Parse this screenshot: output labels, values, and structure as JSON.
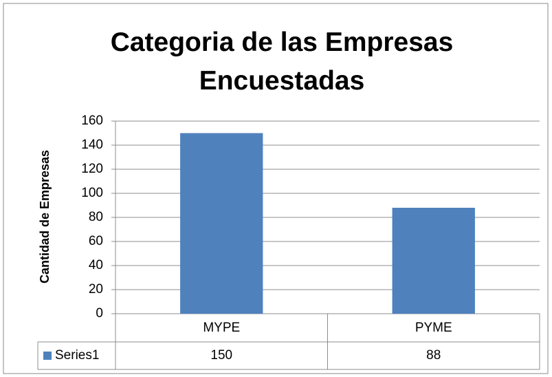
{
  "chart_data": {
    "type": "bar",
    "title": "Categoria de las Empresas Encuestadas",
    "y_label": "Cantidad de Empresas",
    "categories": [
      "MYPE",
      "PYME"
    ],
    "series": [
      {
        "name": "Series1",
        "color": "#4f81bd",
        "values": [
          150,
          88
        ]
      }
    ],
    "ylim": [
      0,
      160
    ],
    "yticks": [
      0,
      20,
      40,
      60,
      80,
      100,
      120,
      140,
      160
    ],
    "grid": true,
    "data_table": true
  }
}
